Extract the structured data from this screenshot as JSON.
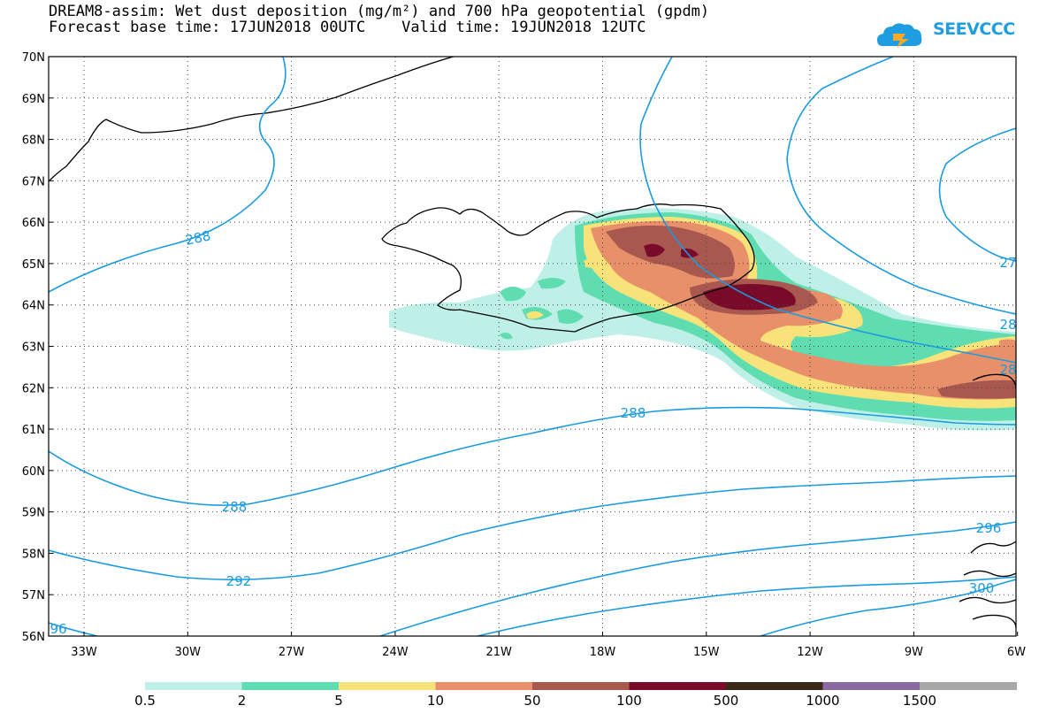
{
  "header": {
    "title_line1": "DREAM8-assim: Wet dust deposition (mg/m²) and 700 hPa geopotential (gpdm)",
    "title_line2": "Forecast base time: 17JUN2018 00UTC    Valid time: 19JUN2018 12UTC"
  },
  "logo": {
    "text": "SEEVCCC",
    "icon": "cloud-icon",
    "color": "#1e9de0"
  },
  "map": {
    "lat_labels": [
      "70N",
      "69N",
      "68N",
      "67N",
      "66N",
      "65N",
      "64N",
      "63N",
      "62N",
      "61N",
      "60N",
      "59N",
      "58N",
      "57N",
      "56N"
    ],
    "lon_labels": [
      "33W",
      "30W",
      "27W",
      "24W",
      "21W",
      "18W",
      "15W",
      "12W",
      "9W",
      "6W"
    ],
    "contour_labels": [
      "288",
      "288",
      "288",
      "292",
      "296",
      "27",
      "28",
      "28",
      "300",
      "96"
    ],
    "contour_color": "#1a9be0",
    "coast_color": "#000000"
  },
  "legend": {
    "colors": [
      "#bff0e8",
      "#5fdcb0",
      "#f7e37a",
      "#e8906a",
      "#a8584e",
      "#7a0a2a",
      "#3a2818",
      "#8a6aa0",
      "#a8a8a8"
    ],
    "ticks": [
      "0.5",
      "2",
      "5",
      "10",
      "50",
      "100",
      "500",
      "1000",
      "1500"
    ]
  }
}
